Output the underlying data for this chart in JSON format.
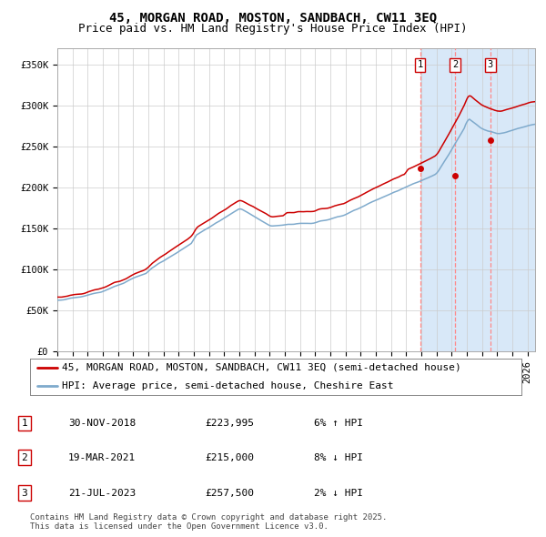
{
  "title": "45, MORGAN ROAD, MOSTON, SANDBACH, CW11 3EQ",
  "subtitle": "Price paid vs. HM Land Registry's House Price Index (HPI)",
  "ylabel_ticks": [
    "£0",
    "£50K",
    "£100K",
    "£150K",
    "£200K",
    "£250K",
    "£300K",
    "£350K"
  ],
  "ytick_values": [
    0,
    50000,
    100000,
    150000,
    200000,
    250000,
    300000,
    350000
  ],
  "ylim": [
    0,
    370000
  ],
  "xlim_start": 1995.0,
  "xlim_end": 2026.5,
  "sale_dates": [
    2018.92,
    2021.22,
    2023.55
  ],
  "sale_labels": [
    "1",
    "2",
    "3"
  ],
  "sale_prices": [
    223995,
    215000,
    257500
  ],
  "legend_entries": [
    "45, MORGAN ROAD, MOSTON, SANDBACH, CW11 3EQ (semi-detached house)",
    "HPI: Average price, semi-detached house, Cheshire East"
  ],
  "table_rows": [
    [
      "1",
      "30-NOV-2018",
      "£223,995",
      "6% ↑ HPI"
    ],
    [
      "2",
      "19-MAR-2021",
      "£215,000",
      "8% ↓ HPI"
    ],
    [
      "3",
      "21-JUL-2023",
      "£257,500",
      "2% ↓ HPI"
    ]
  ],
  "footer": "Contains HM Land Registry data © Crown copyright and database right 2025.\nThis data is licensed under the Open Government Licence v3.0.",
  "line_color_red": "#cc0000",
  "line_color_blue": "#7faacc",
  "vline_color": "#ff8888",
  "shade_color": "#d8e8f8",
  "label_box_color": "#cc0000",
  "bg_color": "#ffffff",
  "grid_color": "#cccccc",
  "title_fontsize": 10,
  "subtitle_fontsize": 9,
  "tick_fontsize": 7.5,
  "legend_fontsize": 8,
  "table_fontsize": 8,
  "footer_fontsize": 6.5
}
